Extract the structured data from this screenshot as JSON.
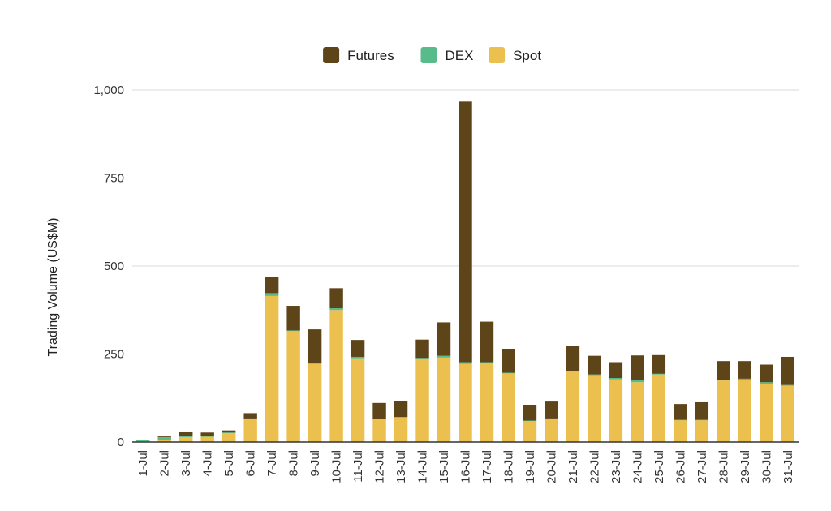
{
  "chart_data": {
    "type": "bar",
    "stacked": true,
    "title": "",
    "xlabel": "",
    "ylabel": "Trading Volume (US$M)",
    "ylim": [
      0,
      1000
    ],
    "yticks": [
      0,
      250,
      500,
      750,
      1000
    ],
    "ytick_labels": [
      "0",
      "250",
      "500",
      "750",
      "1,000"
    ],
    "grid": true,
    "legend_position": "top-center",
    "categories": [
      "1-Jul",
      "2-Jul",
      "3-Jul",
      "4-Jul",
      "5-Jul",
      "6-Jul",
      "7-Jul",
      "8-Jul",
      "9-Jul",
      "10-Jul",
      "11-Jul",
      "12-Jul",
      "13-Jul",
      "14-Jul",
      "15-Jul",
      "16-Jul",
      "17-Jul",
      "18-Jul",
      "19-Jul",
      "20-Jul",
      "21-Jul",
      "22-Jul",
      "23-Jul",
      "24-Jul",
      "25-Jul",
      "26-Jul",
      "27-Jul",
      "28-Jul",
      "29-Jul",
      "30-Jul",
      "31-Jul"
    ],
    "series": [
      {
        "name": "Spot",
        "color": "#ecc04f",
        "values": [
          2,
          6,
          14,
          15,
          25,
          65,
          415,
          315,
          222,
          375,
          238,
          65,
          70,
          235,
          240,
          222,
          225,
          195,
          60,
          66,
          200,
          190,
          178,
          170,
          192,
          62,
          62,
          175,
          176,
          165,
          160
        ]
      },
      {
        "name": "DEX",
        "color": "#57bb8a",
        "values": [
          3,
          8,
          4,
          2,
          2,
          2,
          8,
          2,
          3,
          5,
          4,
          1,
          1,
          4,
          5,
          5,
          2,
          2,
          1,
          1,
          2,
          2,
          4,
          6,
          2,
          1,
          1,
          2,
          4,
          5,
          2
        ]
      },
      {
        "name": "Futures",
        "color": "#5e4419",
        "values": [
          0,
          2,
          12,
          10,
          6,
          15,
          45,
          70,
          95,
          57,
          48,
          45,
          45,
          52,
          95,
          740,
          115,
          68,
          45,
          48,
          70,
          53,
          45,
          70,
          53,
          45,
          50,
          53,
          50,
          50,
          80
        ]
      }
    ],
    "legend_order": [
      "Futures",
      "DEX",
      "Spot"
    ]
  }
}
